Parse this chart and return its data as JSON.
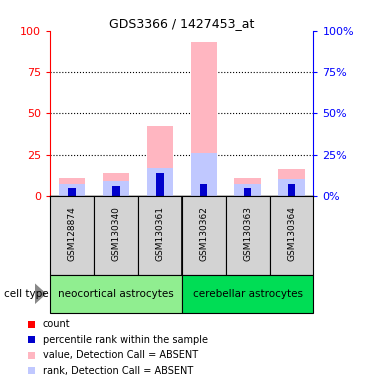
{
  "title": "GDS3366 / 1427453_at",
  "samples": [
    "GSM128874",
    "GSM130340",
    "GSM130361",
    "GSM130362",
    "GSM130363",
    "GSM130364"
  ],
  "groups": [
    {
      "name": "neocortical astrocytes",
      "indices": [
        0,
        1,
        2
      ],
      "color": "#90EE90"
    },
    {
      "name": "cerebellar astrocytes",
      "indices": [
        3,
        4,
        5
      ],
      "color": "#00DD55"
    }
  ],
  "value_bars": [
    11,
    14,
    42,
    93,
    11,
    16
  ],
  "rank_bars": [
    7,
    9,
    17,
    26,
    7,
    10
  ],
  "count_values": [
    2,
    2,
    2,
    2,
    2,
    2
  ],
  "percentile_values": [
    5,
    6,
    14,
    7,
    5,
    7
  ],
  "value_color": "#FFB6C1",
  "rank_color": "#C0C8FF",
  "count_color": "#FF0000",
  "percentile_color": "#0000CC",
  "ylim_left": [
    0,
    100
  ],
  "ylim_right": [
    0,
    100
  ],
  "yticks": [
    0,
    25,
    50,
    75,
    100
  ],
  "bar_width": 0.6,
  "sample_bg_color": "#D3D3D3",
  "legend_items": [
    {
      "label": "count",
      "color": "#FF0000"
    },
    {
      "label": "percentile rank within the sample",
      "color": "#0000CC"
    },
    {
      "label": "value, Detection Call = ABSENT",
      "color": "#FFB6C1"
    },
    {
      "label": "rank, Detection Call = ABSENT",
      "color": "#C0C8FF"
    }
  ],
  "cell_type_label": "cell type",
  "left_axis_color": "#FF0000",
  "right_axis_color": "#0000FF"
}
